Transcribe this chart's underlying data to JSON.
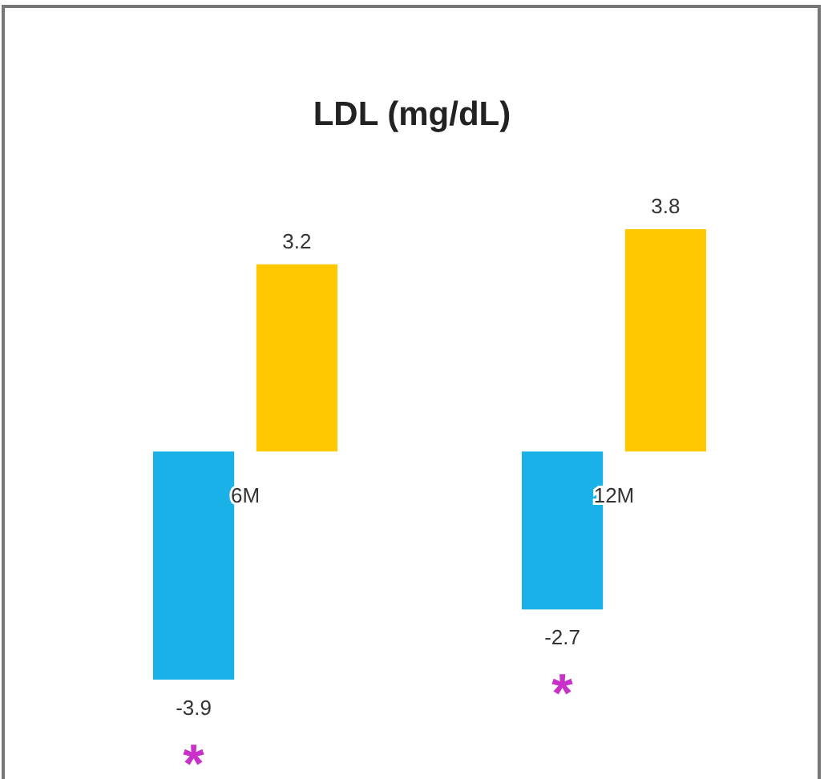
{
  "chart_data": {
    "type": "bar",
    "title": "LDL (mg/dL)",
    "categories": [
      "6M",
      "12M"
    ],
    "series": [
      {
        "color": "#1ab0e8",
        "values": [
          -3.9,
          -2.7
        ]
      },
      {
        "color": "#ffc800",
        "values": [
          3.2,
          3.8
        ]
      }
    ],
    "data_labels": true,
    "grid": false,
    "annotations": [
      "*",
      "*"
    ]
  }
}
